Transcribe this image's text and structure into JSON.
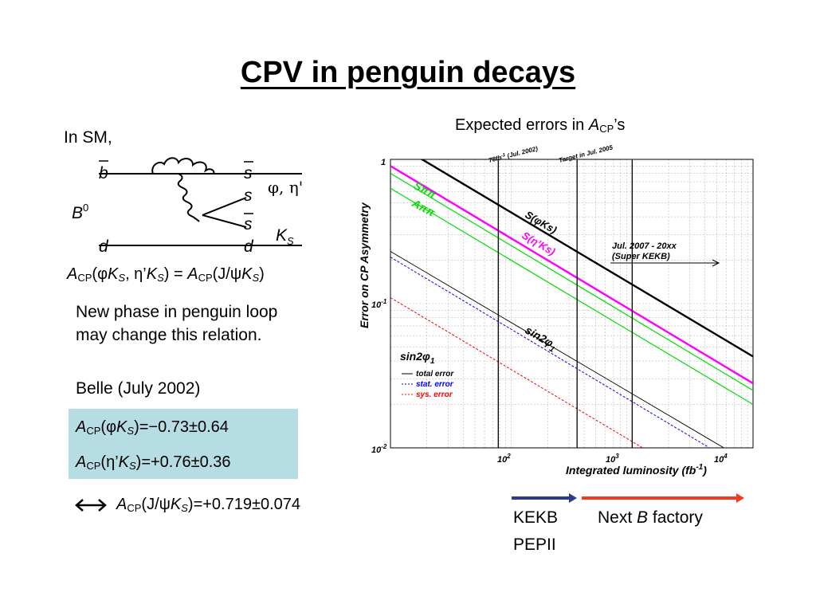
{
  "slide": {
    "title": "CPV in penguin decays",
    "in_sm": "In SM,",
    "diagram": {
      "b_bar": "b",
      "d": "d",
      "s_bar_top": "s",
      "s": "s",
      "s_bar_bottom": "s",
      "d_right": "d",
      "phi_eta": "φ, η'",
      "b0": "B",
      "b0_sup": "0",
      "ks": "K",
      "ks_sub": "S"
    },
    "relation": {
      "lhs_a": "A",
      "lhs_cp": "CP",
      "lhs_args_1": "(φ",
      "lhs_k1": "K",
      "lhs_s1": "S",
      "lhs_args_2": ", η’",
      "lhs_k2": "K",
      "lhs_s2": "S",
      "lhs_close": ") = ",
      "rhs_a": "A",
      "rhs_cp": "CP",
      "rhs_args": "(J/ψ",
      "rhs_k": "K",
      "rhs_s": "S",
      "rhs_close": ")"
    },
    "new_phase_line1": "New phase in penguin loop",
    "new_phase_line2": "may change this relation.",
    "belle": "Belle (July 2002)",
    "result1": {
      "a": "A",
      "cp": "CP",
      "open": "(φ",
      "k": "K",
      "s": "S",
      "value": ")=−0.73±0.64"
    },
    "result2": {
      "a": "A",
      "cp": "CP",
      "open": "(η’",
      "k": "K",
      "s": "S",
      "value": ")=+0.76±0.36"
    },
    "jpsi": {
      "a": "A",
      "cp": "CP",
      "open": "(J/ψ",
      "k": "K",
      "s": "S",
      "value": ")=+0.719±0.074"
    },
    "expected_errors_pre": "Expected errors in ",
    "expected_errors_a": "A",
    "expected_errors_cp": "CP",
    "expected_errors_post": "’s",
    "kekb": "KEKB",
    "pepii": "PEPII",
    "next_pre": "Next ",
    "next_b": "B",
    "next_post": " factory"
  },
  "chart_data": {
    "type": "line",
    "xlabel": "Integrated luminosity (fb",
    "xlabel_sup": "-1",
    "xlabel_close": ")",
    "ylabel": "Error on CP Asymmetry",
    "x_scale": "log",
    "y_scale": "log",
    "xlim": [
      10,
      10000
    ],
    "ylim": [
      0.01,
      1
    ],
    "x_tick_labels": [
      {
        "base": "10",
        "exp": "2"
      },
      {
        "base": "10",
        "exp": "3"
      },
      {
        "base": "10",
        "exp": "4"
      }
    ],
    "y_tick_labels": [
      {
        "base": "1",
        "exp": ""
      },
      {
        "base": "10",
        "exp": "-1"
      },
      {
        "base": "10",
        "exp": "-2"
      }
    ],
    "bottom_left_label": "10",
    "grid": true,
    "vlines": [
      {
        "x": 78,
        "label": "78fb",
        "label_sup": "-1",
        "label_post": " (Jul. 2002)"
      },
      {
        "x": 350,
        "label": "Target in Jul. 2005"
      },
      {
        "x": 1000,
        "label": ""
      }
    ],
    "arrow_label_1": "Jul. 2007 - 20xx",
    "arrow_label_2": "(Super KEKB)",
    "series_labels": {
      "spipi": "Sππ",
      "apipi": "Aππ",
      "sphiks": "S(φKs)",
      "setaks": "S(η’Ks)",
      "sin2phi1": "sin2φ",
      "sin2phi1_sub": "1"
    },
    "legend": {
      "title": "sin2φ",
      "title_sub": "1",
      "entries": [
        "total error",
        "stat. error",
        "sys. error"
      ],
      "colors": [
        "#000000",
        "#0000ff",
        "#ff0000"
      ]
    },
    "series": [
      {
        "key": "sphiks",
        "color": "#000000",
        "width": 2.4,
        "dash": "",
        "values": [
          [
            10,
            1.35
          ],
          [
            10000,
            0.043
          ]
        ]
      },
      {
        "key": "setaks",
        "color": "#ff00ff",
        "width": 2.4,
        "dash": "",
        "values": [
          [
            10,
            0.9
          ],
          [
            10000,
            0.028
          ]
        ]
      },
      {
        "key": "spipi",
        "color": "#00dd00",
        "width": 1.2,
        "dash": "",
        "values": [
          [
            10,
            0.8
          ],
          [
            10000,
            0.025
          ]
        ]
      },
      {
        "key": "apipi",
        "color": "#00dd00",
        "width": 1.2,
        "dash": "",
        "values": [
          [
            10,
            0.63
          ],
          [
            10000,
            0.02
          ]
        ]
      },
      {
        "key": "total",
        "color": "#000000",
        "width": 0.9,
        "dash": "",
        "values": [
          [
            10,
            0.23
          ],
          [
            10000,
            0.0076
          ]
        ]
      },
      {
        "key": "stat",
        "color": "#0000ff",
        "width": 1.0,
        "dash": "3,2",
        "values": [
          [
            10,
            0.21
          ],
          [
            10000,
            0.0066
          ]
        ]
      },
      {
        "key": "sys",
        "color": "#ff0000",
        "width": 1.0,
        "dash": "3,2",
        "values": [
          [
            10,
            0.11
          ],
          [
            10000,
            0.0035
          ]
        ]
      }
    ]
  }
}
